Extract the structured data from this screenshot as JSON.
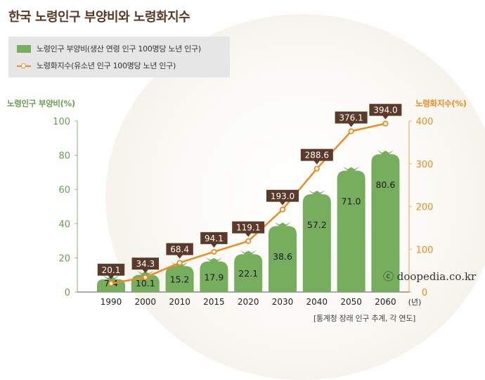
{
  "title": "한국 노령인구 부양비와 노령화지수",
  "legend": {
    "bar_label": "노령인구 부양비(생산 연령 인구 100명당 노년 인구)",
    "line_label": "노령화지수(유소년 인구 100명당 노년 인구)"
  },
  "axes": {
    "left_title": "노령인구 부양비(%)",
    "right_title": "노령화지수(%)",
    "x_unit": "(년)"
  },
  "source": "[통계청 장래 인구 추계, 각 연도]",
  "watermark": "ⓒ doopedia.co.kr",
  "colors": {
    "bar": "#77ae5d",
    "line": "#f08a1e",
    "label_box": "#5b3a2a"
  },
  "chart_data": {
    "type": "bar",
    "categories": [
      "1990",
      "2000",
      "2010",
      "2015",
      "2020",
      "2030",
      "2040",
      "2050",
      "2060"
    ],
    "series": [
      {
        "name": "노령인구 부양비",
        "type": "bar",
        "axis": "left",
        "values": [
          7.4,
          10.1,
          15.2,
          17.9,
          22.1,
          38.6,
          57.2,
          71.0,
          80.6
        ]
      },
      {
        "name": "노령화지수",
        "type": "line",
        "axis": "right",
        "values": [
          20.1,
          34.3,
          68.4,
          94.1,
          119.1,
          193.0,
          288.6,
          376.1,
          394.0
        ]
      }
    ],
    "left_ylabel": "노령인구 부양비(%)",
    "right_ylabel": "노령화지수(%)",
    "left_ylim": [
      0,
      100
    ],
    "right_ylim": [
      0,
      400
    ],
    "left_ticks": [
      0,
      20,
      40,
      60,
      80,
      100
    ],
    "right_ticks": [
      0,
      100,
      200,
      300,
      400
    ],
    "bar_labels": [
      "7.4",
      "10.1",
      "15.2",
      "17.9",
      "22.1",
      "38.6",
      "57.2",
      "71.0",
      "80.6"
    ],
    "line_labels": [
      "20.1",
      "34.3",
      "68.4",
      "94.1",
      "119.1",
      "193.0",
      "288.6",
      "376.1",
      "394.0"
    ],
    "grid": false
  }
}
